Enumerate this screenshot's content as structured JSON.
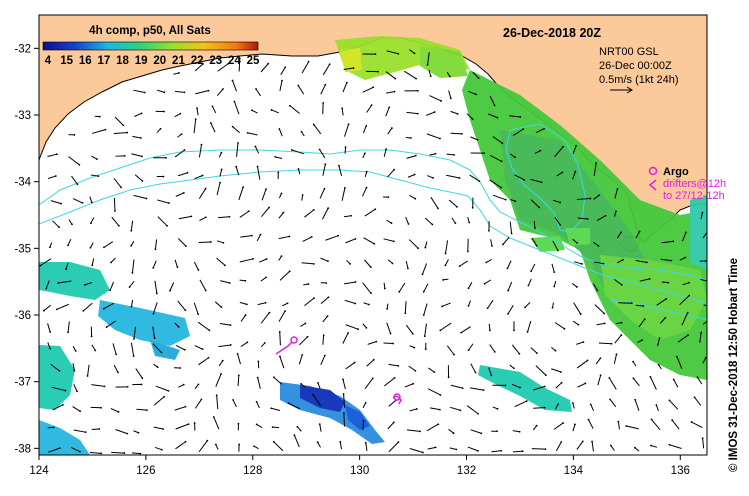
{
  "colorbar": {
    "title": "4h comp, p50, All Sats",
    "labels": [
      "4",
      "15",
      "16",
      "17",
      "18",
      "19",
      "20",
      "21",
      "22",
      "23",
      "24",
      "25"
    ],
    "colors": [
      "#0b0f8c",
      "#1a3fd0",
      "#1e7be6",
      "#19b9e0",
      "#1fd3b8",
      "#2fd17f",
      "#57d64a",
      "#95e12c",
      "#cfe51c",
      "#f2c214",
      "#f07a12",
      "#d42a12"
    ]
  },
  "date_title": "26-Dec-2018 20Z",
  "current_info": {
    "line1": "NRT00 GSL",
    "line2": "26-Dec 00:00Z",
    "line3": "0.5m/s (1kt 24h)"
  },
  "argo": {
    "label": "Argo",
    "line2": "drifters@12h",
    "line3": "to 27/12-12h",
    "color": "#e020e0"
  },
  "x_axis_ticks": [
    "124",
    "126",
    "128",
    "130",
    "132",
    "134",
    "136"
  ],
  "y_axis_ticks": [
    "-32",
    "-33",
    "-34",
    "-35",
    "-36",
    "-37",
    "-38"
  ],
  "side_credit": "© IMOS 31-Dec-2018 12:50 Hobart Time",
  "colors": {
    "land": "#fbc99a",
    "ocean": "#ffffff",
    "isobath": "#3fd6e8",
    "arrow": "#000000"
  }
}
